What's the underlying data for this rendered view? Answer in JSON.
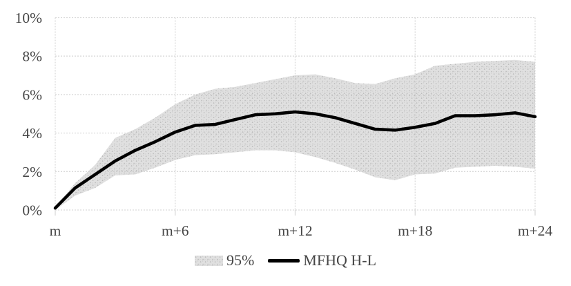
{
  "chart_data": {
    "type": "line",
    "title": "",
    "xlabel": "",
    "ylabel": "",
    "xlim_months": [
      0,
      24
    ],
    "ylim": [
      0,
      10
    ],
    "grid": true,
    "legend_position": "bottom",
    "x_months": [
      0,
      1,
      2,
      3,
      4,
      5,
      6,
      7,
      8,
      9,
      10,
      11,
      12,
      13,
      14,
      15,
      16,
      17,
      18,
      19,
      20,
      21,
      22,
      23,
      24
    ],
    "xticks_months": [
      0,
      6,
      12,
      18,
      24
    ],
    "xtick_labels": [
      "m",
      "m+6",
      "m+12",
      "m+18",
      "m+24"
    ],
    "yticks": [
      0,
      2,
      4,
      6,
      8,
      10
    ],
    "ytick_labels": [
      "0%",
      "2%",
      "4%",
      "6%",
      "8%",
      "10%"
    ],
    "series": [
      {
        "name": "95%",
        "kind": "band",
        "upper": [
          0.15,
          1.4,
          2.35,
          3.75,
          4.2,
          4.8,
          5.5,
          6.0,
          6.3,
          6.4,
          6.6,
          6.8,
          7.0,
          7.05,
          6.85,
          6.6,
          6.55,
          6.85,
          7.05,
          7.5,
          7.6,
          7.7,
          7.75,
          7.8,
          7.7
        ],
        "lower": [
          0.0,
          0.75,
          1.15,
          1.8,
          1.85,
          2.2,
          2.6,
          2.85,
          2.9,
          3.0,
          3.1,
          3.1,
          3.0,
          2.75,
          2.45,
          2.1,
          1.7,
          1.55,
          1.85,
          1.9,
          2.2,
          2.25,
          2.3,
          2.25,
          2.15
        ],
        "fill": "#d9d9d9"
      },
      {
        "name": "MFHQ H-L",
        "kind": "line",
        "values": [
          0.1,
          1.15,
          1.85,
          2.55,
          3.1,
          3.55,
          4.05,
          4.4,
          4.45,
          4.7,
          4.95,
          5.0,
          5.1,
          5.0,
          4.8,
          4.5,
          4.2,
          4.15,
          4.3,
          4.5,
          4.9,
          4.9,
          4.95,
          5.05,
          4.85
        ],
        "color": "#000000",
        "stroke_width": 4.5
      }
    ]
  },
  "legend": {
    "band_label": "95%",
    "line_label": "MFHQ H-L"
  },
  "colors": {
    "background": "#ffffff",
    "grid": "#d9d9d9",
    "band_fill": "#d9d9d9",
    "band_dots": "#9f9f9f",
    "line": "#000000",
    "axis_text": "#454545"
  }
}
